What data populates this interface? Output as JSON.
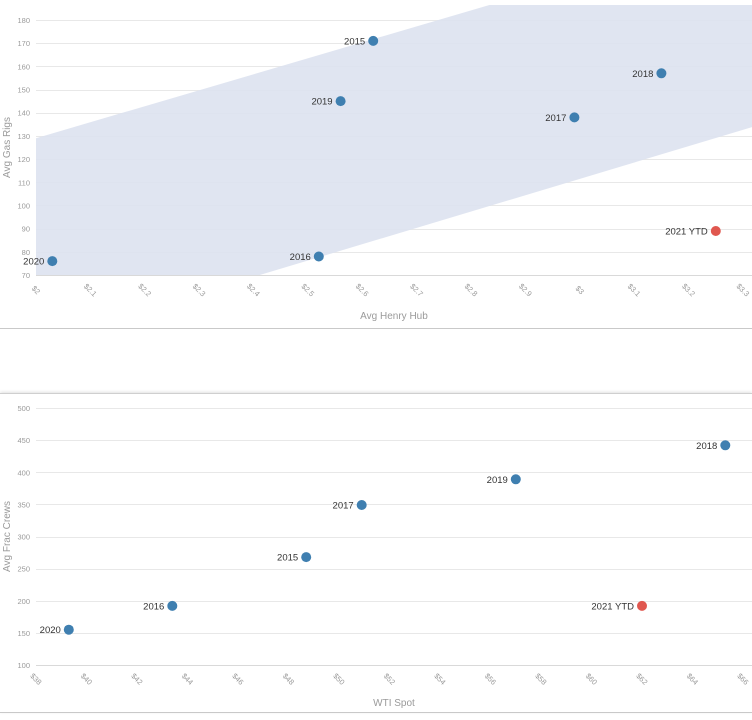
{
  "chart_data": [
    {
      "type": "scatter",
      "xlabel": "Avg Henry Hub",
      "ylabel": "Avg Gas Rigs",
      "xlim": [
        2,
        3.3
      ],
      "ylim": [
        70,
        180
      ],
      "grid": true,
      "x_ticks": [
        {
          "value": 2,
          "label": "$2"
        },
        {
          "value": 2.1,
          "label": "$2.1"
        },
        {
          "value": 2.2,
          "label": "$2.2"
        },
        {
          "value": 2.3,
          "label": "$2.3"
        },
        {
          "value": 2.4,
          "label": "$2.4"
        },
        {
          "value": 2.5,
          "label": "$2.5"
        },
        {
          "value": 2.6,
          "label": "$2.6"
        },
        {
          "value": 2.7,
          "label": "$2.7"
        },
        {
          "value": 2.8,
          "label": "$2.8"
        },
        {
          "value": 2.9,
          "label": "$2.9"
        },
        {
          "value": 3,
          "label": "$3"
        },
        {
          "value": 3.1,
          "label": "$3.1"
        },
        {
          "value": 3.2,
          "label": "$3.2"
        },
        {
          "value": 3.3,
          "label": "$3.3"
        }
      ],
      "y_ticks": [
        {
          "value": 70,
          "label": "70"
        },
        {
          "value": 80,
          "label": "80"
        },
        {
          "value": 90,
          "label": "90"
        },
        {
          "value": 100,
          "label": "100"
        },
        {
          "value": 110,
          "label": "110"
        },
        {
          "value": 120,
          "label": "120"
        },
        {
          "value": 130,
          "label": "130"
        },
        {
          "value": 140,
          "label": "140"
        },
        {
          "value": 150,
          "label": "150"
        },
        {
          "value": 160,
          "label": "160"
        },
        {
          "value": 170,
          "label": "170"
        },
        {
          "value": 180,
          "label": "180"
        }
      ],
      "band": {
        "color": "#dde2f0",
        "x": [
          2,
          3.32
        ],
        "low": [
          41,
          134
        ],
        "high": [
          129,
          220
        ]
      },
      "points": [
        {
          "label": "2015",
          "x": 2.62,
          "y": 171,
          "color": "#3f7fb0"
        },
        {
          "label": "2018",
          "x": 3.15,
          "y": 157,
          "color": "#3f7fb0"
        },
        {
          "label": "2019",
          "x": 2.56,
          "y": 145,
          "color": "#3f7fb0"
        },
        {
          "label": "2017",
          "x": 2.99,
          "y": 138,
          "color": "#3f7fb0"
        },
        {
          "label": "2021 YTD",
          "x": 3.25,
          "y": 89,
          "color": "#e0574f"
        },
        {
          "label": "2016",
          "x": 2.52,
          "y": 78,
          "color": "#3f7fb0"
        },
        {
          "label": "2020",
          "x": 2.03,
          "y": 76,
          "color": "#3f7fb0"
        }
      ]
    },
    {
      "type": "scatter",
      "xlabel": "WTI Spot",
      "ylabel": "Avg Frac Crews",
      "xlim": [
        38,
        66
      ],
      "ylim": [
        100,
        500
      ],
      "grid": true,
      "x_ticks": [
        {
          "value": 38,
          "label": "$38"
        },
        {
          "value": 40,
          "label": "$40"
        },
        {
          "value": 42,
          "label": "$42"
        },
        {
          "value": 44,
          "label": "$44"
        },
        {
          "value": 46,
          "label": "$46"
        },
        {
          "value": 48,
          "label": "$48"
        },
        {
          "value": 50,
          "label": "$50"
        },
        {
          "value": 52,
          "label": "$52"
        },
        {
          "value": 54,
          "label": "$54"
        },
        {
          "value": 56,
          "label": "$56"
        },
        {
          "value": 58,
          "label": "$58"
        },
        {
          "value": 60,
          "label": "$60"
        },
        {
          "value": 62,
          "label": "$62"
        },
        {
          "value": 64,
          "label": "$64"
        },
        {
          "value": 66,
          "label": "$66"
        }
      ],
      "y_ticks": [
        {
          "value": 100,
          "label": "100"
        },
        {
          "value": 150,
          "label": "150"
        },
        {
          "value": 200,
          "label": "200"
        },
        {
          "value": 250,
          "label": "250"
        },
        {
          "value": 300,
          "label": "300"
        },
        {
          "value": 350,
          "label": "350"
        },
        {
          "value": 400,
          "label": "400"
        },
        {
          "value": 450,
          "label": "450"
        },
        {
          "value": 500,
          "label": "500"
        }
      ],
      "points": [
        {
          "label": "2018",
          "x": 65.3,
          "y": 442,
          "color": "#3f7fb0"
        },
        {
          "label": "2019",
          "x": 57.0,
          "y": 389,
          "color": "#3f7fb0"
        },
        {
          "label": "2017",
          "x": 50.9,
          "y": 349,
          "color": "#3f7fb0"
        },
        {
          "label": "2015",
          "x": 48.7,
          "y": 268,
          "color": "#3f7fb0"
        },
        {
          "label": "2016",
          "x": 43.4,
          "y": 192,
          "color": "#3f7fb0"
        },
        {
          "label": "2021 YTD",
          "x": 62.0,
          "y": 192,
          "color": "#e0574f"
        },
        {
          "label": "2020",
          "x": 39.3,
          "y": 155,
          "color": "#3f7fb0"
        }
      ]
    }
  ]
}
